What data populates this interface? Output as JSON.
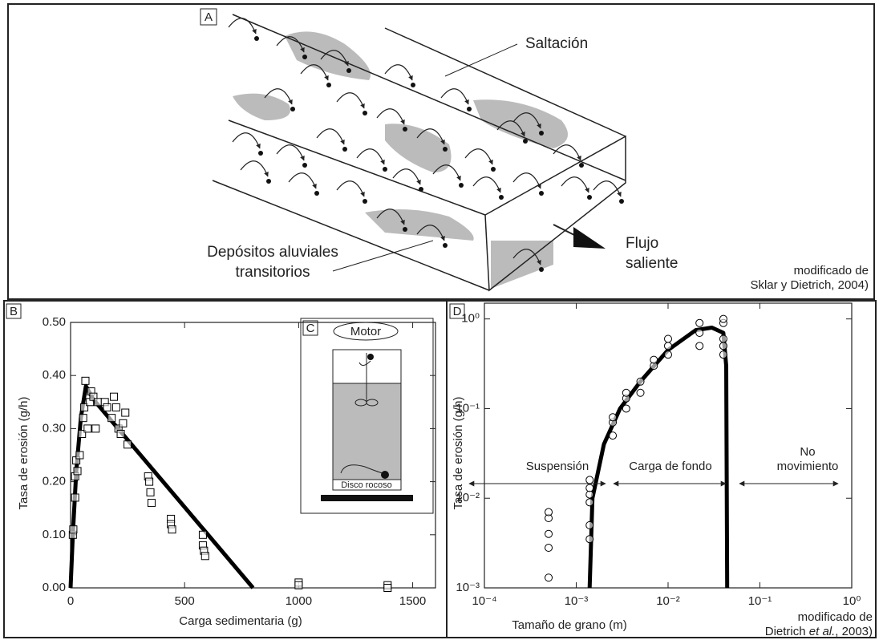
{
  "panel_a": {
    "label": "A",
    "saltation": "Saltación",
    "deposits": [
      "Depósitos aluviales",
      "transitorios"
    ],
    "flow": [
      "Flujo",
      "saliente"
    ],
    "credit": [
      "modificado de",
      "Sklar y Dietrich, 2004)"
    ]
  },
  "panel_c": {
    "label": "C",
    "motor": "Motor",
    "disk": "Disco rocoso"
  },
  "chart_data": [
    {
      "type": "scatter",
      "panel_label": "B",
      "xlabel": "Carga sedimentaria (g)",
      "ylabel": "Tasa de erosión (g/h)",
      "xlim": [
        0,
        1600
      ],
      "xticks": [
        0,
        500,
        1000,
        1500
      ],
      "ylim": [
        0,
        0.5
      ],
      "yticks": [
        {
          "value": 0,
          "label": "0.00"
        },
        {
          "value": 0.1,
          "label": "0.10"
        },
        {
          "value": 0.2,
          "label": "0.20"
        },
        {
          "value": 0.3,
          "label": "0.30"
        },
        {
          "value": 0.4,
          "label": "0.40"
        },
        {
          "value": 0.5,
          "label": "0.50"
        }
      ],
      "marker": "square",
      "color": "#000000",
      "points": {
        "x": [
          10,
          12,
          20,
          20,
          25,
          30,
          40,
          50,
          55,
          60,
          65,
          75,
          85,
          90,
          100,
          110,
          120,
          150,
          160,
          180,
          190,
          200,
          210,
          220,
          230,
          240,
          250,
          340,
          345,
          350,
          355,
          440,
          440,
          445,
          580,
          580,
          585,
          590,
          1000,
          1000,
          1390,
          1390
        ],
        "y": [
          0.1,
          0.11,
          0.17,
          0.21,
          0.24,
          0.22,
          0.25,
          0.29,
          0.32,
          0.34,
          0.39,
          0.3,
          0.35,
          0.37,
          0.36,
          0.3,
          0.35,
          0.35,
          0.34,
          0.32,
          0.36,
          0.34,
          0.3,
          0.29,
          0.31,
          0.33,
          0.27,
          0.21,
          0.2,
          0.18,
          0.16,
          0.13,
          0.12,
          0.11,
          0.1,
          0.08,
          0.07,
          0.06,
          0.01,
          0.005,
          0.005,
          0
        ]
      },
      "fit": {
        "x": [
          0,
          10,
          25,
          45,
          67,
          100,
          800
        ],
        "y": [
          0,
          0.1,
          0.22,
          0.32,
          0.38,
          0.355,
          0
        ]
      }
    },
    {
      "type": "scatter",
      "panel_label": "D",
      "xlabel": "Tamaño de grano (m)",
      "ylabel": "Tasa de erosión (g/h)",
      "log_x": true,
      "log_y": true,
      "xlim": [
        0.0001,
        1
      ],
      "xticks": [
        {
          "value": 0.0001,
          "label": "10⁻⁴"
        },
        {
          "value": 0.001,
          "label": "10⁻³"
        },
        {
          "value": 0.01,
          "label": "10⁻²"
        },
        {
          "value": 0.1,
          "label": "10⁻¹"
        },
        {
          "value": 1,
          "label": "10⁰"
        }
      ],
      "ylim": [
        0.001,
        1.5
      ],
      "yticks": [
        {
          "value": 0.001,
          "label": "10⁻³"
        },
        {
          "value": 0.01,
          "label": "10⁻²"
        },
        {
          "value": 0.1,
          "label": "10⁻¹"
        },
        {
          "value": 1,
          "label": "10⁰"
        }
      ],
      "marker": "circle",
      "color": "#000000",
      "points": {
        "x": [
          0.0005,
          0.0005,
          0.0005,
          0.0005,
          0.0005,
          0.0014,
          0.0014,
          0.0014,
          0.0014,
          0.0014,
          0.0014,
          0.0025,
          0.0025,
          0.0025,
          0.0035,
          0.0035,
          0.0035,
          0.005,
          0.005,
          0.007,
          0.007,
          0.01,
          0.01,
          0.01,
          0.022,
          0.022,
          0.022,
          0.04,
          0.04,
          0.04,
          0.04,
          0.04
        ],
        "y": [
          0.0013,
          0.0028,
          0.004,
          0.006,
          0.007,
          0.0035,
          0.005,
          0.009,
          0.011,
          0.013,
          0.016,
          0.05,
          0.07,
          0.08,
          0.1,
          0.13,
          0.15,
          0.15,
          0.2,
          0.3,
          0.35,
          0.4,
          0.5,
          0.6,
          0.5,
          0.7,
          0.9,
          0.4,
          0.5,
          0.6,
          0.9,
          1.0
        ]
      },
      "fit": {
        "x": [
          0.0014,
          0.0015,
          0.002,
          0.003,
          0.005,
          0.01,
          0.02,
          0.03,
          0.04,
          0.043,
          0.044
        ],
        "y": [
          0.001,
          0.01,
          0.04,
          0.1,
          0.2,
          0.45,
          0.75,
          0.8,
          0.7,
          0.3,
          0.001
        ]
      },
      "annotations": {
        "suspension": "Suspensión",
        "bedload": "Carga de fondo",
        "no_motion": [
          "No",
          "movimiento"
        ]
      },
      "credit": [
        "modificado de",
        "Dietrich",
        "et al.",
        ", 2003)"
      ]
    }
  ]
}
